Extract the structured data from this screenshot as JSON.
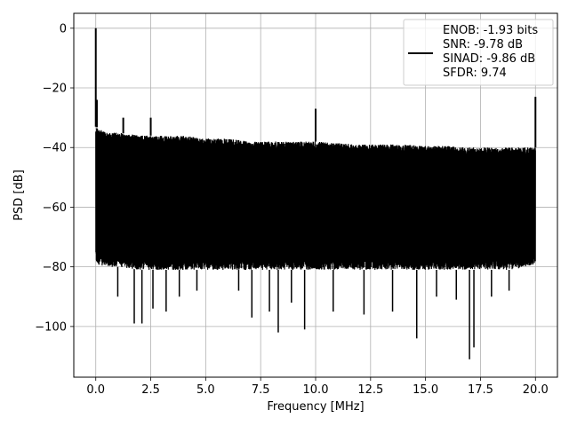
{
  "chart_data": {
    "type": "line",
    "title": "",
    "xlabel": "Frequency [MHz]",
    "ylabel": "PSD [dB]",
    "xlim": [
      -1.0,
      21.0
    ],
    "ylim": [
      -117.0,
      5.0
    ],
    "xticks": [
      0.0,
      2.5,
      5.0,
      7.5,
      10.0,
      12.5,
      15.0,
      17.5,
      20.0
    ],
    "xtick_labels": [
      "0.0",
      "2.5",
      "5.0",
      "7.5",
      "10.0",
      "12.5",
      "15.0",
      "17.5",
      "20.0"
    ],
    "yticks": [
      0,
      -20,
      -40,
      -60,
      -80,
      -100
    ],
    "ytick_labels": [
      "0",
      "−20",
      "−40",
      "−60",
      "−80",
      "−100"
    ],
    "grid": true,
    "legend_placement": "upper-right",
    "series": [
      {
        "name": "ENOB: -1.93 bits\nSNR: -9.78 dB\nSINAD: -9.86 dB\nSFDR: 9.74",
        "color": "#000000",
        "noise_band": {
          "x": [
            0.0,
            0.5,
            1.0,
            2.0,
            3.0,
            4.0,
            5.0,
            6.0,
            7.0,
            8.0,
            9.0,
            10.0,
            11.0,
            12.0,
            13.0,
            14.0,
            15.0,
            16.0,
            17.0,
            18.0,
            19.0,
            20.0
          ],
          "upper": [
            -33,
            -35,
            -35,
            -36,
            -36,
            -36,
            -37,
            -37,
            -38,
            -38,
            -38,
            -38,
            -38.5,
            -39,
            -39,
            -39,
            -39.5,
            -39.5,
            -40,
            -40,
            -40,
            -40
          ],
          "lower": [
            -79,
            -80,
            -80,
            -81,
            -81,
            -81,
            -81,
            -81,
            -81,
            -81,
            -81,
            -81,
            -81,
            -81,
            -81,
            -81,
            -81,
            -81,
            -81,
            -81,
            -81,
            -79
          ]
        },
        "spikes": [
          {
            "x": 0.0,
            "y": 0
          },
          {
            "x": 0.05,
            "y": -24
          },
          {
            "x": 1.25,
            "y": -30
          },
          {
            "x": 2.5,
            "y": -30
          },
          {
            "x": 10.0,
            "y": -27
          },
          {
            "x": 20.0,
            "y": -23
          }
        ],
        "dips": [
          {
            "x": 1.0,
            "y": -90
          },
          {
            "x": 1.75,
            "y": -99
          },
          {
            "x": 2.1,
            "y": -99
          },
          {
            "x": 2.6,
            "y": -94
          },
          {
            "x": 3.2,
            "y": -95
          },
          {
            "x": 3.8,
            "y": -90
          },
          {
            "x": 4.6,
            "y": -88
          },
          {
            "x": 6.5,
            "y": -88
          },
          {
            "x": 7.1,
            "y": -97
          },
          {
            "x": 7.9,
            "y": -95
          },
          {
            "x": 8.3,
            "y": -102
          },
          {
            "x": 8.9,
            "y": -92
          },
          {
            "x": 9.5,
            "y": -101
          },
          {
            "x": 10.8,
            "y": -95
          },
          {
            "x": 12.2,
            "y": -96
          },
          {
            "x": 13.5,
            "y": -95
          },
          {
            "x": 14.6,
            "y": -104
          },
          {
            "x": 15.5,
            "y": -90
          },
          {
            "x": 16.4,
            "y": -91
          },
          {
            "x": 17.0,
            "y": -111
          },
          {
            "x": 17.2,
            "y": -107
          },
          {
            "x": 18.0,
            "y": -90
          },
          {
            "x": 18.8,
            "y": -88
          }
        ]
      }
    ]
  },
  "legend": {
    "lines": [
      "ENOB: -1.93 bits",
      "SNR: -9.78 dB",
      "SINAD: -9.86 dB",
      "SFDR: 9.74"
    ]
  }
}
